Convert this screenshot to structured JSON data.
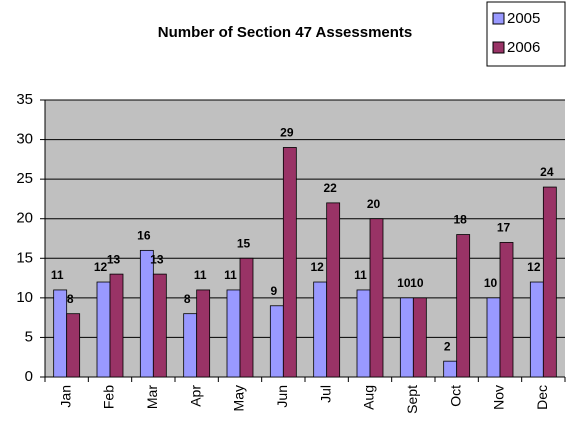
{
  "chart_data": {
    "type": "bar",
    "title": "Number of Section 47 Assessments",
    "categories": [
      "Jan",
      "Feb",
      "Mar",
      "Apr",
      "May",
      "Jun",
      "Jul",
      "Aug",
      "Sept",
      "Oct",
      "Nov",
      "Dec"
    ],
    "series": [
      {
        "name": "2005",
        "color": "#9999ff",
        "values": [
          11,
          12,
          16,
          8,
          11,
          9,
          12,
          11,
          10,
          2,
          10,
          12
        ]
      },
      {
        "name": "2006",
        "color": "#993366",
        "values": [
          8,
          13,
          13,
          11,
          15,
          29,
          22,
          20,
          10,
          18,
          17,
          24
        ]
      }
    ],
    "ylim": [
      0,
      35
    ],
    "yticks": [
      0,
      5,
      10,
      15,
      20,
      25,
      30,
      35
    ],
    "grid": true,
    "legend": "top-right"
  }
}
